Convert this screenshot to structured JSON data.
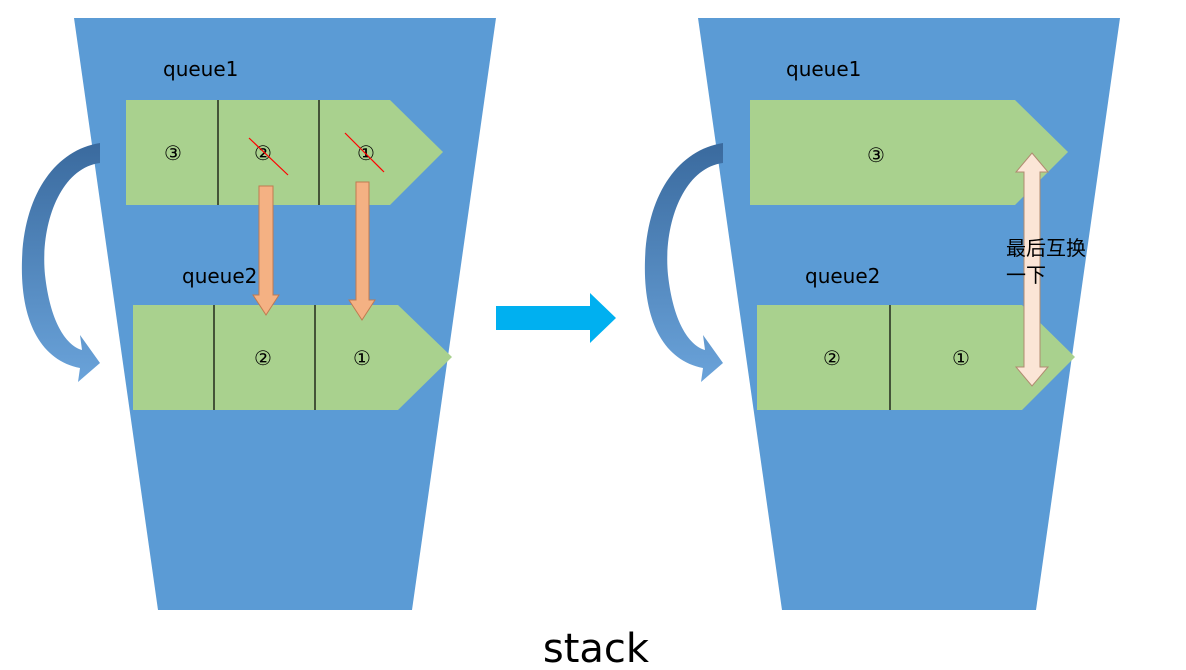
{
  "colors": {
    "stack": "#5b9bd5",
    "queue": "#a9d18e",
    "cross": "#ff0000",
    "transfer_arrow": "#f4b183",
    "flow_arrow": "#00b0f0",
    "swap_arrow": "#fbe5d6"
  },
  "left": {
    "queue1_label": "queue1",
    "queue1_cells": [
      "③",
      "②",
      "①"
    ],
    "queue2_label": "queue2",
    "queue2_cells": [
      "",
      "②",
      "①"
    ]
  },
  "right": {
    "queue1_label": "queue1",
    "queue1_cells": [
      "③"
    ],
    "queue2_label": "queue2",
    "queue2_cells": [
      "②",
      "①"
    ],
    "swap_note_line1": "最后互换",
    "swap_note_line2": "一下"
  },
  "caption": "stack"
}
